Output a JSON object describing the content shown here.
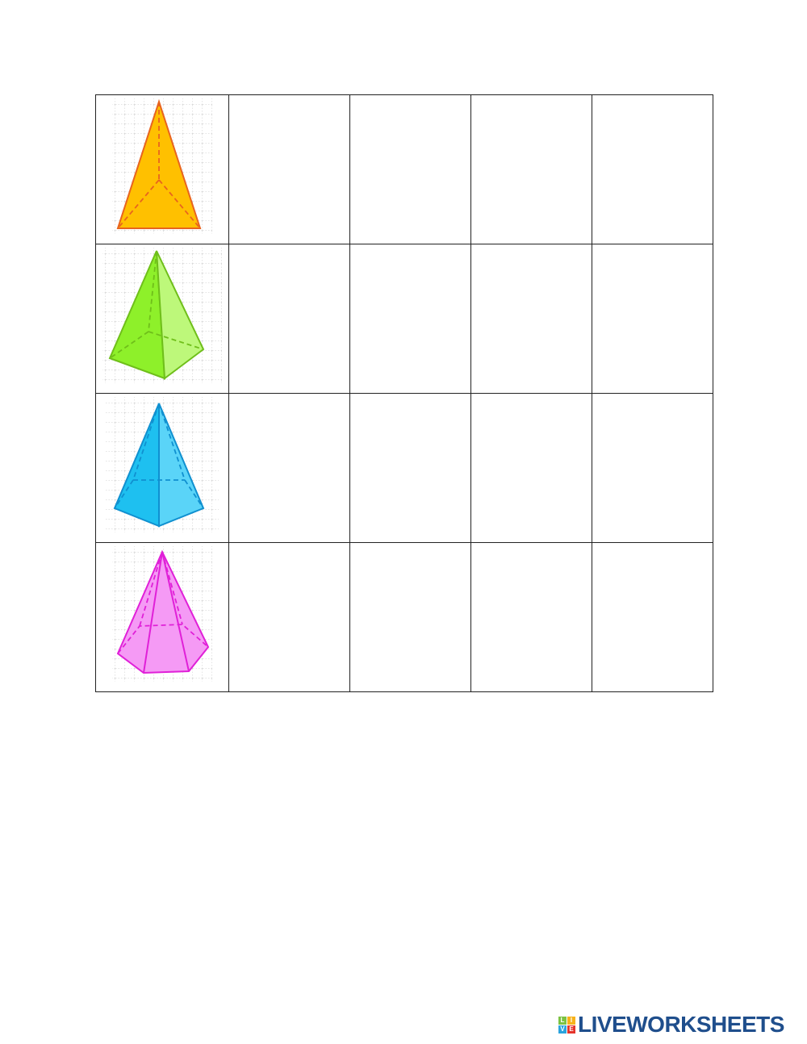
{
  "table": {
    "rows": [
      {
        "shape": "triangular-pyramid",
        "color": "#ffc000",
        "stroke": "#e8641e"
      },
      {
        "shape": "square-pyramid",
        "color": "#8ef02a",
        "stroke": "#6fbf1a"
      },
      {
        "shape": "rectangular-pyramid",
        "color": "#1ec0f0",
        "stroke": "#1090d0"
      },
      {
        "shape": "hexagonal-pyramid",
        "color": "#f07af0",
        "stroke": "#e020d8"
      }
    ],
    "columns": 5
  },
  "logo": {
    "text": "LIVEWORKSHEETS",
    "blocks": [
      "L",
      "I",
      "V",
      "E"
    ],
    "color": "#1f4e8c"
  }
}
